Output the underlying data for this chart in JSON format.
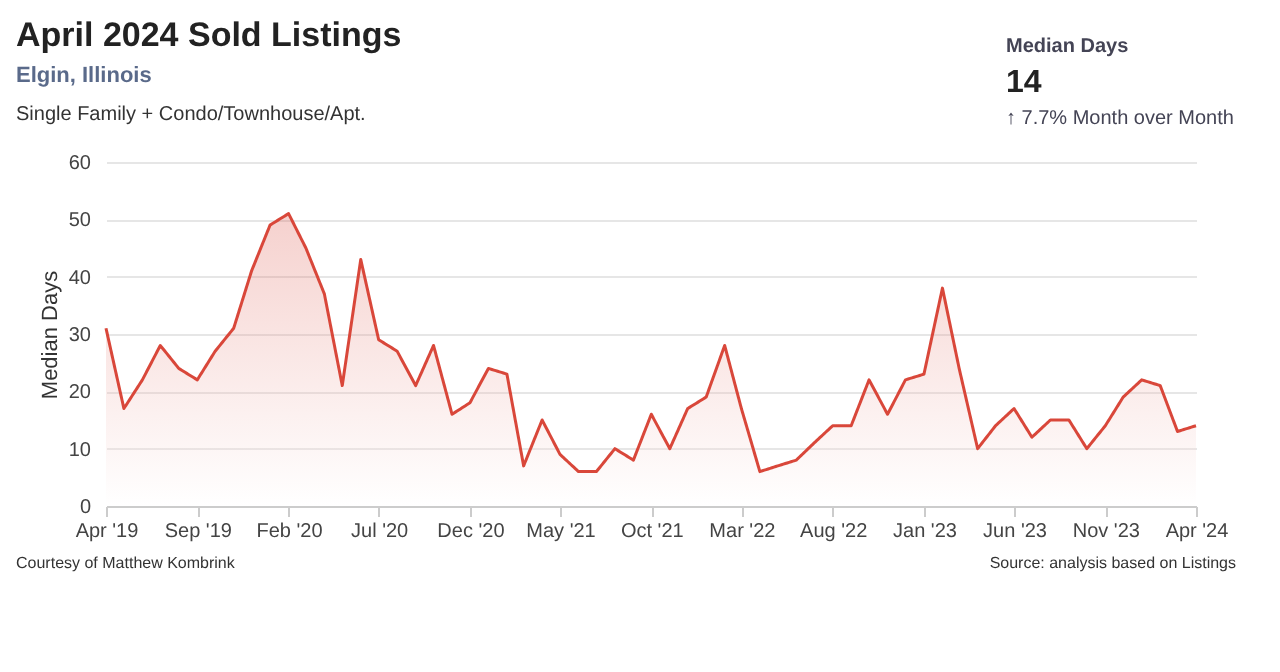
{
  "chart_data": {
    "type": "area",
    "title": "April 2024 Sold Listings",
    "subtitle": "Elgin, Illinois",
    "ylabel": "Median Days",
    "annotations": [
      "Single Family + Condo/Townhouse/Apt.",
      "Median Days",
      "14",
      "↑ 7.7% Month over Month",
      "Courtesy of Matthew Kombrink",
      "Source: analysis based on Listings"
    ],
    "x": [
      "2019-04",
      "2019-05",
      "2019-06",
      "2019-07",
      "2019-08",
      "2019-09",
      "2019-10",
      "2019-11",
      "2019-12",
      "2020-01",
      "2020-02",
      "2020-03",
      "2020-04",
      "2020-05",
      "2020-06",
      "2020-07",
      "2020-08",
      "2020-09",
      "2020-10",
      "2020-11",
      "2020-12",
      "2021-01",
      "2021-02",
      "2021-03",
      "2021-04",
      "2021-05",
      "2021-06",
      "2021-07",
      "2021-08",
      "2021-09",
      "2021-10",
      "2021-11",
      "2021-12",
      "2022-01",
      "2022-02",
      "2022-03",
      "2022-04",
      "2022-05",
      "2022-06",
      "2022-07",
      "2022-08",
      "2022-09",
      "2022-10",
      "2022-11",
      "2022-12",
      "2023-01",
      "2023-02",
      "2023-03",
      "2023-04",
      "2023-05",
      "2023-06",
      "2023-07",
      "2023-08",
      "2023-09",
      "2023-10",
      "2023-11",
      "2023-12",
      "2024-01",
      "2024-02",
      "2024-03",
      "2024-04"
    ],
    "series": [
      {
        "color": "#d9473a",
        "values": [
          31,
          17,
          22,
          28,
          24,
          22,
          27,
          31,
          41,
          49,
          51,
          45,
          37,
          21,
          43,
          29,
          27,
          21,
          28,
          16,
          18,
          24,
          23,
          7,
          15,
          9,
          6,
          6,
          10,
          8,
          16,
          10,
          17,
          19,
          28,
          17,
          6,
          7,
          8,
          11,
          14,
          14,
          22,
          16,
          22,
          23,
          38,
          24,
          10,
          14,
          17,
          12,
          15,
          15,
          10,
          14,
          19,
          22,
          21,
          13,
          14
        ]
      }
    ],
    "xlim": [
      "2019-04",
      "2024-04"
    ],
    "xticks": [
      {
        "value": "2019-04",
        "label": "Apr '19"
      },
      {
        "value": "2019-09",
        "label": "Sep '19"
      },
      {
        "value": "2020-02",
        "label": "Feb '20"
      },
      {
        "value": "2020-07",
        "label": "Jul '20"
      },
      {
        "value": "2020-12",
        "label": "Dec '20"
      },
      {
        "value": "2021-05",
        "label": "May '21"
      },
      {
        "value": "2021-10",
        "label": "Oct '21"
      },
      {
        "value": "2022-03",
        "label": "Mar '22"
      },
      {
        "value": "2022-08",
        "label": "Aug '22"
      },
      {
        "value": "2023-01",
        "label": "Jan '23"
      },
      {
        "value": "2023-06",
        "label": "Jun '23"
      },
      {
        "value": "2023-11",
        "label": "Nov '23"
      },
      {
        "value": "2024-04",
        "label": "Apr '24"
      }
    ],
    "ylim": [
      0,
      60
    ],
    "yticks": [
      0,
      10,
      20,
      30,
      40,
      50,
      60
    ],
    "grid": "y",
    "marker": "none",
    "line_style": "solid"
  }
}
